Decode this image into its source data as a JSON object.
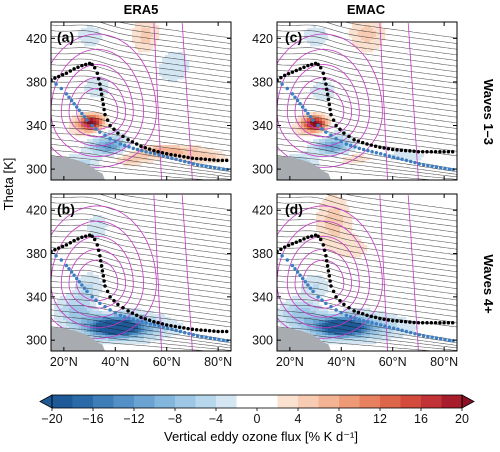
{
  "figure": {
    "column_titles": [
      "ERA5",
      "EMAC"
    ],
    "row_titles": [
      "Waves 1–3",
      "Waves 4+"
    ],
    "ylabel": "Theta [K]",
    "panel_letters": [
      "(a)",
      "(c)",
      "(b)",
      "(d)"
    ],
    "colorbar_label": "Vertical eddy ozone flux [% K d⁻¹]"
  },
  "chart_data": {
    "type": "heatmap",
    "x_axis": {
      "range": [
        15,
        85
      ],
      "ticks": [
        20,
        40,
        60,
        80
      ],
      "tick_labels": [
        "20°N",
        "40°N",
        "60°N",
        "80°N"
      ]
    },
    "y_axis": {
      "range": [
        290,
        435
      ],
      "ticks": [
        300,
        340,
        380,
        420
      ],
      "tick_labels": [
        "300",
        "340",
        "380",
        "420"
      ]
    },
    "colorbar": {
      "ticks": [
        -20,
        -16,
        -12,
        -8,
        -4,
        0,
        4,
        8,
        12,
        16,
        20
      ],
      "tick_labels": [
        "−20",
        "−16",
        "−12",
        "−8",
        "−4",
        "0",
        "4",
        "8",
        "12",
        "16",
        "20"
      ],
      "levels": [
        -20,
        -18,
        -16,
        -14,
        -12,
        -10,
        -8,
        -6,
        -4,
        -2,
        2,
        4,
        6,
        8,
        10,
        12,
        14,
        16,
        18,
        20
      ],
      "colors": [
        "#1f5a98",
        "#2b6aa8",
        "#3d7db8",
        "#5290c6",
        "#6aa3d1",
        "#83b6dc",
        "#9dc7e5",
        "#b7d7ec",
        "#d3e6f2",
        "#ffffff",
        "#fbe1cf",
        "#f8ccb2",
        "#f4b493",
        "#ee9a77",
        "#e6805f",
        "#dd654a",
        "#d24b3c",
        "#c13336",
        "#a81d2c",
        "#8c1024"
      ],
      "extend": "both"
    },
    "panels": [
      {
        "id": "a",
        "source": "ERA5",
        "waves": "1-3",
        "blobs": [
          {
            "x": 31,
            "y": 343,
            "sx": 3.2,
            "sy": 5,
            "value": 18
          },
          {
            "x": 28,
            "y": 338,
            "sx": 4.5,
            "sy": 7,
            "value": 6
          },
          {
            "x": 38,
            "y": 320,
            "sx": 4.5,
            "sy": 5,
            "value": -10
          },
          {
            "x": 35,
            "y": 328,
            "sx": 7,
            "sy": 9,
            "value": -4
          },
          {
            "x": 26,
            "y": 305,
            "sx": 6,
            "sy": 6,
            "value": -5
          },
          {
            "x": 60,
            "y": 317,
            "sx": 10,
            "sy": 4,
            "value": 7
          },
          {
            "x": 75,
            "y": 310,
            "sx": 6,
            "sy": 4,
            "value": 5
          },
          {
            "x": 46,
            "y": 309,
            "sx": 6,
            "sy": 4,
            "value": 5
          },
          {
            "x": 52,
            "y": 422,
            "sx": 4,
            "sy": 14,
            "value": 5
          },
          {
            "x": 30,
            "y": 422,
            "sx": 5,
            "sy": 10,
            "value": -3
          },
          {
            "x": 62,
            "y": 395,
            "sx": 7,
            "sy": 16,
            "value": -3
          },
          {
            "x": 33,
            "y": 375,
            "sx": 4,
            "sy": 8,
            "value": -4
          }
        ],
        "grey_surface": [
          [
            15,
            312
          ],
          [
            20,
            311
          ],
          [
            24,
            309
          ],
          [
            28,
            306
          ],
          [
            31,
            302
          ],
          [
            33,
            298
          ],
          [
            35,
            296
          ],
          [
            36,
            290
          ],
          [
            15,
            290
          ]
        ],
        "black_line": [
          [
            15,
            382
          ],
          [
            18,
            385
          ],
          [
            21,
            388
          ],
          [
            24,
            392
          ],
          [
            27,
            395
          ],
          [
            30,
            397
          ],
          [
            31,
            396
          ],
          [
            32,
            393
          ],
          [
            33,
            388
          ],
          [
            34,
            378
          ],
          [
            35,
            364
          ],
          [
            36,
            350
          ],
          [
            38,
            340
          ],
          [
            41,
            333
          ],
          [
            45,
            327
          ],
          [
            50,
            321
          ],
          [
            55,
            317
          ],
          [
            60,
            314
          ],
          [
            65,
            312
          ],
          [
            70,
            310
          ],
          [
            75,
            309
          ],
          [
            80,
            308
          ],
          [
            85,
            308
          ]
        ],
        "blue_line": [
          [
            15,
            381
          ],
          [
            17,
            378
          ],
          [
            19,
            374
          ],
          [
            21,
            369
          ],
          [
            23,
            363
          ],
          [
            25,
            357
          ],
          [
            27,
            351
          ],
          [
            29,
            345
          ],
          [
            31,
            340
          ],
          [
            34,
            334
          ],
          [
            38,
            328
          ],
          [
            42,
            323
          ],
          [
            47,
            319
          ],
          [
            52,
            316
          ],
          [
            57,
            313
          ],
          [
            62,
            310
          ],
          [
            67,
            307
          ],
          [
            72,
            304
          ],
          [
            77,
            302
          ],
          [
            82,
            300
          ],
          [
            85,
            299
          ]
        ]
      },
      {
        "id": "c",
        "source": "EMAC",
        "waves": "1-3",
        "blobs": [
          {
            "x": 30,
            "y": 342,
            "sx": 3.2,
            "sy": 5,
            "value": 18
          },
          {
            "x": 28,
            "y": 337,
            "sx": 4.5,
            "sy": 7,
            "value": 6
          },
          {
            "x": 37,
            "y": 320,
            "sx": 4.5,
            "sy": 5,
            "value": -9
          },
          {
            "x": 35,
            "y": 328,
            "sx": 7,
            "sy": 9,
            "value": -4
          },
          {
            "x": 24,
            "y": 305,
            "sx": 5,
            "sy": 6,
            "value": -6
          },
          {
            "x": 45,
            "y": 310,
            "sx": 6,
            "sy": 4,
            "value": 4
          },
          {
            "x": 65,
            "y": 312,
            "sx": 8,
            "sy": 5,
            "value": -3
          },
          {
            "x": 50,
            "y": 424,
            "sx": 5,
            "sy": 12,
            "value": 5
          },
          {
            "x": 30,
            "y": 422,
            "sx": 5,
            "sy": 10,
            "value": -3
          },
          {
            "x": 33,
            "y": 372,
            "sx": 4,
            "sy": 8,
            "value": -4
          }
        ],
        "grey_surface": [
          [
            15,
            312
          ],
          [
            20,
            311
          ],
          [
            24,
            309
          ],
          [
            28,
            306
          ],
          [
            31,
            302
          ],
          [
            33,
            298
          ],
          [
            35,
            296
          ],
          [
            36,
            290
          ],
          [
            15,
            290
          ]
        ],
        "black_line": [
          [
            15,
            382
          ],
          [
            18,
            386
          ],
          [
            21,
            389
          ],
          [
            24,
            392
          ],
          [
            27,
            395
          ],
          [
            30,
            397
          ],
          [
            31,
            396
          ],
          [
            32,
            393
          ],
          [
            33,
            388
          ],
          [
            34,
            378
          ],
          [
            35,
            364
          ],
          [
            36,
            350
          ],
          [
            38,
            340
          ],
          [
            41,
            333
          ],
          [
            45,
            327
          ],
          [
            50,
            323
          ],
          [
            55,
            320
          ],
          [
            60,
            318
          ],
          [
            65,
            317
          ],
          [
            70,
            316
          ],
          [
            75,
            316
          ],
          [
            80,
            316
          ],
          [
            85,
            316
          ]
        ],
        "blue_line": [
          [
            15,
            381
          ],
          [
            17,
            378
          ],
          [
            19,
            374
          ],
          [
            21,
            369
          ],
          [
            23,
            363
          ],
          [
            25,
            357
          ],
          [
            27,
            351
          ],
          [
            29,
            345
          ],
          [
            31,
            340
          ],
          [
            34,
            334
          ],
          [
            38,
            328
          ],
          [
            42,
            323
          ],
          [
            47,
            319
          ],
          [
            52,
            316
          ],
          [
            57,
            313
          ],
          [
            62,
            310
          ],
          [
            67,
            307
          ],
          [
            72,
            304
          ],
          [
            77,
            302
          ],
          [
            82,
            300
          ],
          [
            85,
            299
          ]
        ]
      },
      {
        "id": "b",
        "source": "ERA5",
        "waves": "4+",
        "blobs": [
          {
            "x": 40,
            "y": 312,
            "sx": 6.5,
            "sy": 5.5,
            "value": -20
          },
          {
            "x": 41,
            "y": 313,
            "sx": 11,
            "sy": 10,
            "value": -8
          },
          {
            "x": 52,
            "y": 311,
            "sx": 12,
            "sy": 7,
            "value": -3
          },
          {
            "x": 25,
            "y": 328,
            "sx": 6,
            "sy": 10,
            "value": -6
          },
          {
            "x": 30,
            "y": 350,
            "sx": 4,
            "sy": 10,
            "value": -4
          },
          {
            "x": 36,
            "y": 332,
            "sx": 4,
            "sy": 5,
            "value": 4
          },
          {
            "x": 50,
            "y": 372,
            "sx": 6,
            "sy": 6,
            "value": 2
          },
          {
            "x": 33,
            "y": 405,
            "sx": 4,
            "sy": 12,
            "value": -3
          }
        ],
        "grey_surface": [
          [
            15,
            312
          ],
          [
            20,
            311
          ],
          [
            24,
            309
          ],
          [
            28,
            306
          ],
          [
            31,
            302
          ],
          [
            33,
            298
          ],
          [
            35,
            296
          ],
          [
            36,
            290
          ],
          [
            15,
            290
          ]
        ],
        "black_line": [
          [
            15,
            382
          ],
          [
            18,
            385
          ],
          [
            21,
            388
          ],
          [
            24,
            392
          ],
          [
            27,
            395
          ],
          [
            30,
            397
          ],
          [
            31,
            396
          ],
          [
            32,
            393
          ],
          [
            33,
            388
          ],
          [
            34,
            378
          ],
          [
            35,
            364
          ],
          [
            36,
            350
          ],
          [
            38,
            340
          ],
          [
            41,
            333
          ],
          [
            45,
            327
          ],
          [
            50,
            321
          ],
          [
            55,
            317
          ],
          [
            60,
            314
          ],
          [
            65,
            312
          ],
          [
            70,
            310
          ],
          [
            75,
            309
          ],
          [
            80,
            308
          ],
          [
            85,
            308
          ]
        ],
        "blue_line": [
          [
            15,
            381
          ],
          [
            17,
            378
          ],
          [
            19,
            374
          ],
          [
            21,
            369
          ],
          [
            23,
            363
          ],
          [
            25,
            357
          ],
          [
            27,
            351
          ],
          [
            29,
            345
          ],
          [
            31,
            340
          ],
          [
            34,
            334
          ],
          [
            38,
            328
          ],
          [
            42,
            323
          ],
          [
            47,
            319
          ],
          [
            52,
            316
          ],
          [
            57,
            313
          ],
          [
            62,
            310
          ],
          [
            67,
            307
          ],
          [
            72,
            304
          ],
          [
            77,
            302
          ],
          [
            82,
            300
          ],
          [
            85,
            299
          ]
        ]
      },
      {
        "id": "d",
        "source": "EMAC",
        "waves": "4+",
        "blobs": [
          {
            "x": 40,
            "y": 312,
            "sx": 6,
            "sy": 5,
            "value": -20
          },
          {
            "x": 41,
            "y": 313,
            "sx": 11,
            "sy": 10,
            "value": -8
          },
          {
            "x": 55,
            "y": 312,
            "sx": 14,
            "sy": 8,
            "value": -3
          },
          {
            "x": 24,
            "y": 325,
            "sx": 6,
            "sy": 10,
            "value": -6
          },
          {
            "x": 30,
            "y": 350,
            "sx": 4,
            "sy": 10,
            "value": -4
          },
          {
            "x": 37,
            "y": 410,
            "sx": 5,
            "sy": 18,
            "value": 5
          },
          {
            "x": 45,
            "y": 385,
            "sx": 5,
            "sy": 8,
            "value": 3
          },
          {
            "x": 36,
            "y": 333,
            "sx": 4,
            "sy": 5,
            "value": 3
          }
        ],
        "grey_surface": [
          [
            15,
            312
          ],
          [
            20,
            311
          ],
          [
            24,
            309
          ],
          [
            28,
            306
          ],
          [
            31,
            302
          ],
          [
            33,
            298
          ],
          [
            35,
            296
          ],
          [
            36,
            290
          ],
          [
            15,
            290
          ]
        ],
        "black_line": [
          [
            15,
            382
          ],
          [
            18,
            386
          ],
          [
            21,
            389
          ],
          [
            24,
            392
          ],
          [
            27,
            395
          ],
          [
            30,
            397
          ],
          [
            31,
            396
          ],
          [
            32,
            393
          ],
          [
            33,
            388
          ],
          [
            34,
            378
          ],
          [
            35,
            364
          ],
          [
            36,
            350
          ],
          [
            38,
            340
          ],
          [
            41,
            333
          ],
          [
            45,
            327
          ],
          [
            50,
            323
          ],
          [
            55,
            320
          ],
          [
            60,
            318
          ],
          [
            65,
            317
          ],
          [
            70,
            316
          ],
          [
            75,
            316
          ],
          [
            80,
            316
          ],
          [
            85,
            316
          ]
        ],
        "blue_line": [
          [
            15,
            381
          ],
          [
            17,
            378
          ],
          [
            19,
            374
          ],
          [
            21,
            369
          ],
          [
            23,
            363
          ],
          [
            25,
            357
          ],
          [
            27,
            351
          ],
          [
            29,
            345
          ],
          [
            31,
            340
          ],
          [
            34,
            334
          ],
          [
            38,
            328
          ],
          [
            42,
            323
          ],
          [
            47,
            319
          ],
          [
            52,
            316
          ],
          [
            57,
            313
          ],
          [
            62,
            310
          ],
          [
            67,
            307
          ],
          [
            72,
            304
          ],
          [
            77,
            302
          ],
          [
            82,
            300
          ],
          [
            85,
            299
          ]
        ]
      }
    ]
  }
}
